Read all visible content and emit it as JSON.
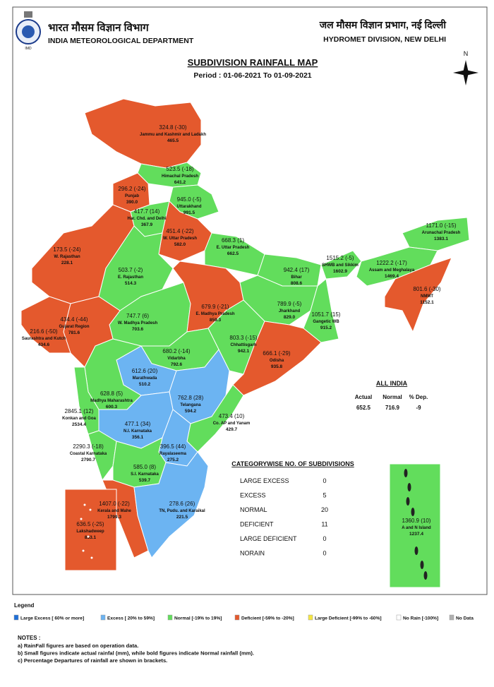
{
  "header": {
    "left_hindi": "भारत मौसम विज्ञान विभाग",
    "left_title": "INDIA METEOROLOGICAL DEPARTMENT",
    "right_hindi": "जल मौसम विज्ञान प्रभाग, नई दिल्ली",
    "right_title": "HYDROMET DIVISION, NEW DELHI"
  },
  "map": {
    "title": "SUBDIVISION RAINFALL MAP",
    "period": "Period : 01-06-2021 To 01-09-2021",
    "north": "N",
    "subdivisions": [
      {
        "label": "324.8 (-30)",
        "name": "Jammu and Kashmir and Ladakh",
        "normal": "465.5",
        "color": "#e4592d"
      },
      {
        "label": "523.5 (-18)",
        "name": "Himachal Pradesh",
        "normal": "641.2",
        "color": "#62dd5c"
      },
      {
        "label": "296.2 (-24)",
        "name": "Punjab",
        "normal": "390.0",
        "color": "#e4592d"
      },
      {
        "label": "945.0 (-5)",
        "name": "Uttarakhand",
        "normal": "991.5",
        "color": "#62dd5c"
      },
      {
        "label": "417.7 (14)",
        "name": "Har. Chd. and Delhi",
        "normal": "367.9",
        "color": "#62dd5c"
      },
      {
        "label": "451.4 (-22)",
        "name": "W. Uttar Pradesh",
        "normal": "582.0",
        "color": "#e4592d"
      },
      {
        "label": "668.3 (1)",
        "name": "E. Uttar Pradesh",
        "normal": "662.5",
        "color": "#62dd5c"
      },
      {
        "label": "942.4 (17)",
        "name": "Bihar",
        "normal": "808.6",
        "color": "#62dd5c"
      },
      {
        "label": "1515.2 (-5)",
        "name": "SHWB and Sikkim",
        "normal": "1602.9",
        "color": "#62dd5c"
      },
      {
        "label": "1171.0 (-15)",
        "name": "Arunachal Pradesh",
        "normal": "1383.1",
        "color": "#62dd5c"
      },
      {
        "label": "1222.2 (-17)",
        "name": "Assam and Meghalaya",
        "normal": "1469.4",
        "color": "#62dd5c"
      },
      {
        "label": "801.6 (-30)",
        "name": "NMMT",
        "normal": "1152.1",
        "color": "#e4592d"
      },
      {
        "label": "173.5 (-24)",
        "name": "W. Rajasthan",
        "normal": "228.1",
        "color": "#e4592d"
      },
      {
        "label": "503.7 (-2)",
        "name": "E. Rajasthan",
        "normal": "514.3",
        "color": "#62dd5c"
      },
      {
        "label": "747.7 (6)",
        "name": "W. Madhya Pradesh",
        "normal": "703.6",
        "color": "#62dd5c"
      },
      {
        "label": "679.9 (-21)",
        "name": "E. Madhya Pradesh",
        "normal": "859.3",
        "color": "#e4592d"
      },
      {
        "label": "789.9 (-5)",
        "name": "Jharkhand",
        "normal": "829.0",
        "color": "#62dd5c"
      },
      {
        "label": "1051.7 (15)",
        "name": "Gangetic WB",
        "normal": "915.2",
        "color": "#62dd5c"
      },
      {
        "label": "434.4 (-44)",
        "name": "Gujarat Region",
        "normal": "781.6",
        "color": "#e4592d"
      },
      {
        "label": "216.6 (-50)",
        "name": "Saurashtra and Kutch",
        "normal": "434.6",
        "color": "#e4592d"
      },
      {
        "label": "803.3 (-15)",
        "name": "Chhattisgarh",
        "normal": "942.1",
        "color": "#62dd5c"
      },
      {
        "label": "666.1 (-29)",
        "name": "Odisha",
        "normal": "935.8",
        "color": "#e4592d"
      },
      {
        "label": "680.2 (-14)",
        "name": "Vidarbha",
        "normal": "792.6",
        "color": "#62dd5c"
      },
      {
        "label": "612.6 (20)",
        "name": "Marathwada",
        "normal": "510.2",
        "color": "#6cb4f2"
      },
      {
        "label": "628.8 (5)",
        "name": "Madhya Maharashtra",
        "normal": "600.3",
        "color": "#62dd5c"
      },
      {
        "label": "762.8 (28)",
        "name": "Telangana",
        "normal": "594.2",
        "color": "#6cb4f2"
      },
      {
        "label": "2845.1 (12)",
        "name": "Konkan and Goa",
        "normal": "2534.4",
        "color": "#62dd5c"
      },
      {
        "label": "477.1 (34)",
        "name": "N.I. Karnataka",
        "normal": "356.1",
        "color": "#6cb4f2"
      },
      {
        "label": "473.4 (10)",
        "name": "Co. AP and Yanam",
        "normal": "429.7",
        "color": "#62dd5c"
      },
      {
        "label": "2290.3 (-18)",
        "name": "Coastal Karnataka",
        "normal": "2790.7",
        "color": "#62dd5c"
      },
      {
        "label": "396.5 (44)",
        "name": "Rayalaseema",
        "normal": "275.2",
        "color": "#6cb4f2"
      },
      {
        "label": "585.0 (8)",
        "name": "S.I. Karnataka",
        "normal": "539.7",
        "color": "#62dd5c"
      },
      {
        "label": "1407.0 (-22)",
        "name": "Kerala and Mahe",
        "normal": "1799.3",
        "color": "#e4592d"
      },
      {
        "label": "278.6 (26)",
        "name": "TN, Pudu. and Karaikal",
        "normal": "221.5",
        "color": "#6cb4f2"
      },
      {
        "label": "636.5 (-25)",
        "name": "Lakshadweep",
        "normal": "853.1",
        "color": "#e4592d"
      },
      {
        "label": "1360.9 (10)",
        "name": "A and N Island",
        "normal": "1237.4",
        "color": "#62dd5c"
      }
    ]
  },
  "all_india": {
    "title": "ALL INDIA",
    "headers": [
      "Actual",
      "Normal",
      "% Dep."
    ],
    "values": [
      "652.5",
      "716.9",
      "-9"
    ]
  },
  "categorywise": {
    "title": "CATEGORYWISE NO. OF SUBDIVISIONS",
    "rows": [
      [
        "LARGE EXCESS",
        "0"
      ],
      [
        "EXCESS",
        "5"
      ],
      [
        "NORMAL",
        "20"
      ],
      [
        "DEFICIENT",
        "11"
      ],
      [
        "LARGE DEFICIENT",
        "0"
      ],
      [
        "NORAIN",
        "0"
      ]
    ]
  },
  "legend": {
    "title": "Legend",
    "items": [
      {
        "label": "Large Excess [ 60% or more]",
        "color": "#1e6fd8"
      },
      {
        "label": "Excess [ 20% to 59%]",
        "color": "#6cb4f2"
      },
      {
        "label": "Normal [-19% to 19%]",
        "color": "#62dd5c"
      },
      {
        "label": "Deficient [-59% to -20%]",
        "color": "#e4592d"
      },
      {
        "label": "Large Deficient [-99% to -60%]",
        "color": "#f5e642"
      },
      {
        "label": "No Rain [-100%]",
        "color": "#ffffff"
      },
      {
        "label": "No Data",
        "color": "#b0b0b0"
      }
    ]
  },
  "notes": {
    "title": "NOTES :",
    "lines": [
      "a) RainFall figures are based on operation data.",
      "b) Small figures indicate actual rainfal (mm), while bold figures indicate Normal rainfall (mm).",
      "c) Percentage Departures of rainfall are shown in brackets."
    ]
  }
}
